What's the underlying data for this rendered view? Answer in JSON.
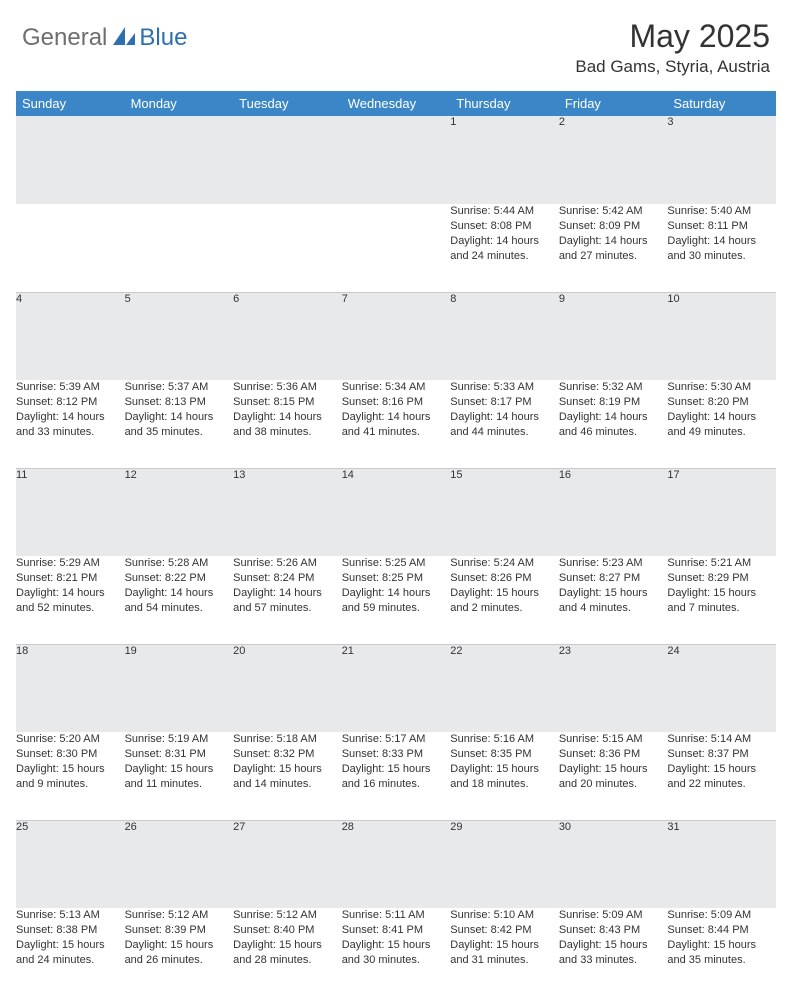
{
  "brand": {
    "part1": "General",
    "part2": "Blue"
  },
  "title": "May 2025",
  "location": "Bad Gams, Styria, Austria",
  "colors": {
    "header_bg": "#3b86c7",
    "daynum_bg": "#e8e9ea",
    "text": "#333333",
    "brand_gray": "#6e6e6e",
    "brand_blue": "#2f6fb0"
  },
  "day_headers": [
    "Sunday",
    "Monday",
    "Tuesday",
    "Wednesday",
    "Thursday",
    "Friday",
    "Saturday"
  ],
  "weeks": [
    [
      null,
      null,
      null,
      null,
      {
        "n": "1",
        "sunrise": "5:44 AM",
        "sunset": "8:08 PM",
        "daylight": "14 hours and 24 minutes."
      },
      {
        "n": "2",
        "sunrise": "5:42 AM",
        "sunset": "8:09 PM",
        "daylight": "14 hours and 27 minutes."
      },
      {
        "n": "3",
        "sunrise": "5:40 AM",
        "sunset": "8:11 PM",
        "daylight": "14 hours and 30 minutes."
      }
    ],
    [
      {
        "n": "4",
        "sunrise": "5:39 AM",
        "sunset": "8:12 PM",
        "daylight": "14 hours and 33 minutes."
      },
      {
        "n": "5",
        "sunrise": "5:37 AM",
        "sunset": "8:13 PM",
        "daylight": "14 hours and 35 minutes."
      },
      {
        "n": "6",
        "sunrise": "5:36 AM",
        "sunset": "8:15 PM",
        "daylight": "14 hours and 38 minutes."
      },
      {
        "n": "7",
        "sunrise": "5:34 AM",
        "sunset": "8:16 PM",
        "daylight": "14 hours and 41 minutes."
      },
      {
        "n": "8",
        "sunrise": "5:33 AM",
        "sunset": "8:17 PM",
        "daylight": "14 hours and 44 minutes."
      },
      {
        "n": "9",
        "sunrise": "5:32 AM",
        "sunset": "8:19 PM",
        "daylight": "14 hours and 46 minutes."
      },
      {
        "n": "10",
        "sunrise": "5:30 AM",
        "sunset": "8:20 PM",
        "daylight": "14 hours and 49 minutes."
      }
    ],
    [
      {
        "n": "11",
        "sunrise": "5:29 AM",
        "sunset": "8:21 PM",
        "daylight": "14 hours and 52 minutes."
      },
      {
        "n": "12",
        "sunrise": "5:28 AM",
        "sunset": "8:22 PM",
        "daylight": "14 hours and 54 minutes."
      },
      {
        "n": "13",
        "sunrise": "5:26 AM",
        "sunset": "8:24 PM",
        "daylight": "14 hours and 57 minutes."
      },
      {
        "n": "14",
        "sunrise": "5:25 AM",
        "sunset": "8:25 PM",
        "daylight": "14 hours and 59 minutes."
      },
      {
        "n": "15",
        "sunrise": "5:24 AM",
        "sunset": "8:26 PM",
        "daylight": "15 hours and 2 minutes."
      },
      {
        "n": "16",
        "sunrise": "5:23 AM",
        "sunset": "8:27 PM",
        "daylight": "15 hours and 4 minutes."
      },
      {
        "n": "17",
        "sunrise": "5:21 AM",
        "sunset": "8:29 PM",
        "daylight": "15 hours and 7 minutes."
      }
    ],
    [
      {
        "n": "18",
        "sunrise": "5:20 AM",
        "sunset": "8:30 PM",
        "daylight": "15 hours and 9 minutes."
      },
      {
        "n": "19",
        "sunrise": "5:19 AM",
        "sunset": "8:31 PM",
        "daylight": "15 hours and 11 minutes."
      },
      {
        "n": "20",
        "sunrise": "5:18 AM",
        "sunset": "8:32 PM",
        "daylight": "15 hours and 14 minutes."
      },
      {
        "n": "21",
        "sunrise": "5:17 AM",
        "sunset": "8:33 PM",
        "daylight": "15 hours and 16 minutes."
      },
      {
        "n": "22",
        "sunrise": "5:16 AM",
        "sunset": "8:35 PM",
        "daylight": "15 hours and 18 minutes."
      },
      {
        "n": "23",
        "sunrise": "5:15 AM",
        "sunset": "8:36 PM",
        "daylight": "15 hours and 20 minutes."
      },
      {
        "n": "24",
        "sunrise": "5:14 AM",
        "sunset": "8:37 PM",
        "daylight": "15 hours and 22 minutes."
      }
    ],
    [
      {
        "n": "25",
        "sunrise": "5:13 AM",
        "sunset": "8:38 PM",
        "daylight": "15 hours and 24 minutes."
      },
      {
        "n": "26",
        "sunrise": "5:12 AM",
        "sunset": "8:39 PM",
        "daylight": "15 hours and 26 minutes."
      },
      {
        "n": "27",
        "sunrise": "5:12 AM",
        "sunset": "8:40 PM",
        "daylight": "15 hours and 28 minutes."
      },
      {
        "n": "28",
        "sunrise": "5:11 AM",
        "sunset": "8:41 PM",
        "daylight": "15 hours and 30 minutes."
      },
      {
        "n": "29",
        "sunrise": "5:10 AM",
        "sunset": "8:42 PM",
        "daylight": "15 hours and 31 minutes."
      },
      {
        "n": "30",
        "sunrise": "5:09 AM",
        "sunset": "8:43 PM",
        "daylight": "15 hours and 33 minutes."
      },
      {
        "n": "31",
        "sunrise": "5:09 AM",
        "sunset": "8:44 PM",
        "daylight": "15 hours and 35 minutes."
      }
    ]
  ],
  "labels": {
    "sunrise": "Sunrise: ",
    "sunset": "Sunset: ",
    "daylight": "Daylight: "
  }
}
